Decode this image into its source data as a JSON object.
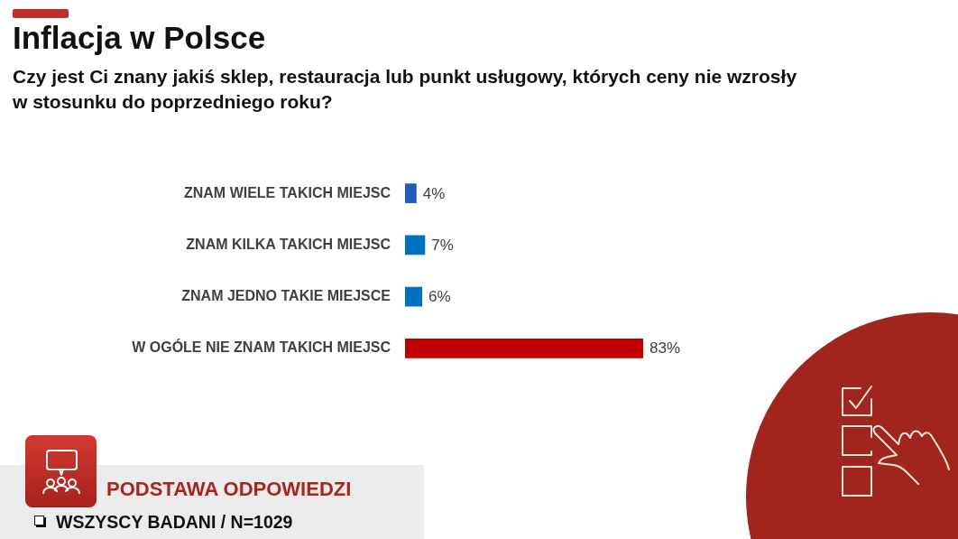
{
  "chart_data": {
    "type": "bar",
    "orientation": "horizontal",
    "title": "Inflacja w Polsce",
    "subtitle": "Czy jest Ci znany jakiś sklep, restauracja lub punkt usługowy, których ceny nie wzrosły w stosunku do poprzedniego roku?",
    "categories": [
      "ZNAM WIELE TAKICH MIEJSC",
      "ZNAM KILKA TAKICH MIEJSC",
      "ZNAM JEDNO TAKIE MIEJSCE",
      "W OGÓLE NIE ZNAM TAKICH MIEJSC"
    ],
    "values": [
      4,
      7,
      6,
      83
    ],
    "colors": [
      "#1f5bc0",
      "#0070c0",
      "#0070c0",
      "#c00000"
    ],
    "value_labels": [
      "4%",
      "7%",
      "6%",
      "83%"
    ],
    "annotations": [
      "PODSTAWA ODPOWIEDZI",
      "WSZYSCY BADANI / N=1029"
    ],
    "grid": false,
    "legend": false,
    "tick_labels": "y"
  }
}
